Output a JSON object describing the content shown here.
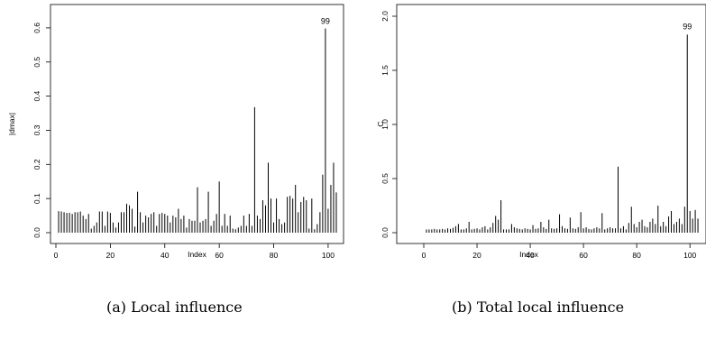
{
  "chart_data": [
    {
      "type": "bar",
      "caption": "(a)  Local influence",
      "xlabel": "Index",
      "ylabel": "|dmax|",
      "xlim": [
        0,
        104
      ],
      "ylim": [
        0,
        0.65
      ],
      "xticks": [
        0,
        20,
        40,
        60,
        80,
        100
      ],
      "yticks": [
        0.0,
        0.1,
        0.2,
        0.3,
        0.4,
        0.5,
        0.6
      ],
      "ytick_labels": [
        "0.0",
        "0.1",
        "0.2",
        "0.3",
        "0.4",
        "0.5",
        "0.6"
      ],
      "annotations": [
        {
          "x": 99,
          "text": "99"
        }
      ],
      "x": [
        1,
        2,
        3,
        4,
        5,
        6,
        7,
        8,
        9,
        10,
        11,
        12,
        13,
        14,
        15,
        16,
        17,
        18,
        19,
        20,
        21,
        22,
        23,
        24,
        25,
        26,
        27,
        28,
        29,
        30,
        31,
        32,
        33,
        34,
        35,
        36,
        37,
        38,
        39,
        40,
        41,
        42,
        43,
        44,
        45,
        46,
        47,
        48,
        49,
        50,
        51,
        52,
        53,
        54,
        55,
        56,
        57,
        58,
        59,
        60,
        61,
        62,
        63,
        64,
        65,
        66,
        67,
        68,
        69,
        70,
        71,
        72,
        73,
        74,
        75,
        76,
        77,
        78,
        79,
        80,
        81,
        82,
        83,
        84,
        85,
        86,
        87,
        88,
        89,
        90,
        91,
        92,
        93,
        94,
        95,
        96,
        97,
        98,
        99,
        100,
        101,
        102,
        103
      ],
      "values": [
        0.063,
        0.062,
        0.06,
        0.058,
        0.058,
        0.055,
        0.06,
        0.06,
        0.062,
        0.05,
        0.04,
        0.055,
        0.012,
        0.02,
        0.03,
        0.062,
        0.062,
        0.02,
        0.062,
        0.058,
        0.03,
        0.015,
        0.03,
        0.06,
        0.06,
        0.085,
        0.08,
        0.07,
        0.018,
        0.12,
        0.06,
        0.03,
        0.05,
        0.045,
        0.055,
        0.06,
        0.02,
        0.055,
        0.058,
        0.055,
        0.05,
        0.03,
        0.05,
        0.045,
        0.07,
        0.04,
        0.05,
        0.015,
        0.04,
        0.035,
        0.035,
        0.133,
        0.03,
        0.035,
        0.04,
        0.12,
        0.02,
        0.035,
        0.055,
        0.15,
        0.02,
        0.055,
        0.02,
        0.05,
        0.012,
        0.01,
        0.015,
        0.02,
        0.05,
        0.02,
        0.055,
        0.02,
        0.368,
        0.05,
        0.04,
        0.095,
        0.08,
        0.205,
        0.1,
        0.03,
        0.1,
        0.04,
        0.025,
        0.03,
        0.105,
        0.108,
        0.1,
        0.14,
        0.06,
        0.09,
        0.105,
        0.095,
        0.012,
        0.1,
        0.01,
        0.025,
        0.06,
        0.17,
        0.598,
        0.07,
        0.14,
        0.205,
        0.118
      ]
    },
    {
      "type": "bar",
      "caption": "(b)  Total local influence",
      "xlabel": "Index",
      "ylabel": "C",
      "xlim": [
        0,
        104
      ],
      "ylim": [
        0,
        2.05
      ],
      "xticks": [
        0,
        20,
        40,
        60,
        80,
        100
      ],
      "yticks": [
        0.0,
        0.5,
        1.0,
        1.5,
        2.0
      ],
      "ytick_labels": [
        "0.0",
        "0.5",
        "1.0",
        "1.5",
        "2.0"
      ],
      "annotations": [
        {
          "x": 99,
          "text": "99"
        }
      ],
      "x": [
        1,
        2,
        3,
        4,
        5,
        6,
        7,
        8,
        9,
        10,
        11,
        12,
        13,
        14,
        15,
        16,
        17,
        18,
        19,
        20,
        21,
        22,
        23,
        24,
        25,
        26,
        27,
        28,
        29,
        30,
        31,
        32,
        33,
        34,
        35,
        36,
        37,
        38,
        39,
        40,
        41,
        42,
        43,
        44,
        45,
        46,
        47,
        48,
        49,
        50,
        51,
        52,
        53,
        54,
        55,
        56,
        57,
        58,
        59,
        60,
        61,
        62,
        63,
        64,
        65,
        66,
        67,
        68,
        69,
        70,
        71,
        72,
        73,
        74,
        75,
        76,
        77,
        78,
        79,
        80,
        81,
        82,
        83,
        84,
        85,
        86,
        87,
        88,
        89,
        90,
        91,
        92,
        93,
        94,
        95,
        96,
        97,
        98,
        99,
        100,
        101,
        102,
        103
      ],
      "values": [
        0.03,
        0.03,
        0.03,
        0.035,
        0.03,
        0.03,
        0.035,
        0.03,
        0.04,
        0.035,
        0.045,
        0.06,
        0.08,
        0.03,
        0.03,
        0.04,
        0.1,
        0.03,
        0.035,
        0.04,
        0.03,
        0.05,
        0.06,
        0.03,
        0.05,
        0.09,
        0.155,
        0.12,
        0.3,
        0.03,
        0.03,
        0.03,
        0.08,
        0.05,
        0.04,
        0.035,
        0.03,
        0.04,
        0.035,
        0.03,
        0.07,
        0.035,
        0.04,
        0.1,
        0.05,
        0.035,
        0.12,
        0.04,
        0.035,
        0.04,
        0.17,
        0.06,
        0.04,
        0.035,
        0.14,
        0.04,
        0.035,
        0.05,
        0.19,
        0.04,
        0.05,
        0.035,
        0.03,
        0.04,
        0.05,
        0.04,
        0.18,
        0.03,
        0.04,
        0.05,
        0.04,
        0.04,
        0.61,
        0.04,
        0.06,
        0.03,
        0.09,
        0.24,
        0.08,
        0.05,
        0.1,
        0.12,
        0.06,
        0.05,
        0.1,
        0.13,
        0.08,
        0.25,
        0.06,
        0.1,
        0.06,
        0.15,
        0.2,
        0.08,
        0.1,
        0.13,
        0.08,
        0.24,
        1.83,
        0.2,
        0.13,
        0.21,
        0.13
      ]
    }
  ]
}
